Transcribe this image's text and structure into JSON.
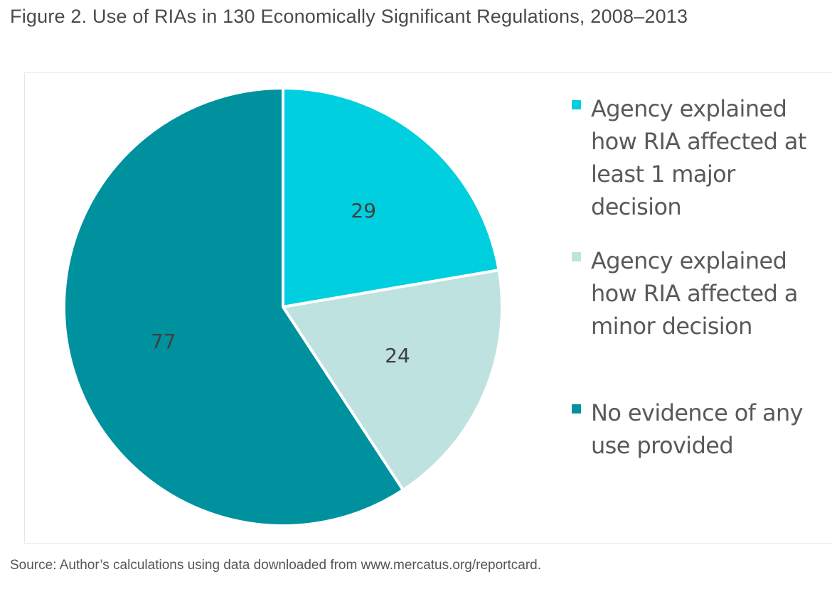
{
  "figure": {
    "title": "Figure 2. Use of RIAs in 130 Economically Significant Regulations, 2008–2013",
    "source": "Source: Author’s calculations using data downloaded from www.mercatus.org/reportcard."
  },
  "chart_data": {
    "type": "pie",
    "title": "Figure 2. Use of RIAs in 130 Economically Significant Regulations, 2008–2013",
    "legend_position": "right",
    "slices": [
      {
        "label": "Agency explained how RIA affected at least 1 major decision",
        "value": 29,
        "color": "#00cfdf"
      },
      {
        "label": "Agency explained how RIA affected a minor decision",
        "value": 24,
        "color": "#bde2df"
      },
      {
        "label": "No evidence of any use provided",
        "value": 77,
        "color": "#00919e"
      }
    ]
  }
}
